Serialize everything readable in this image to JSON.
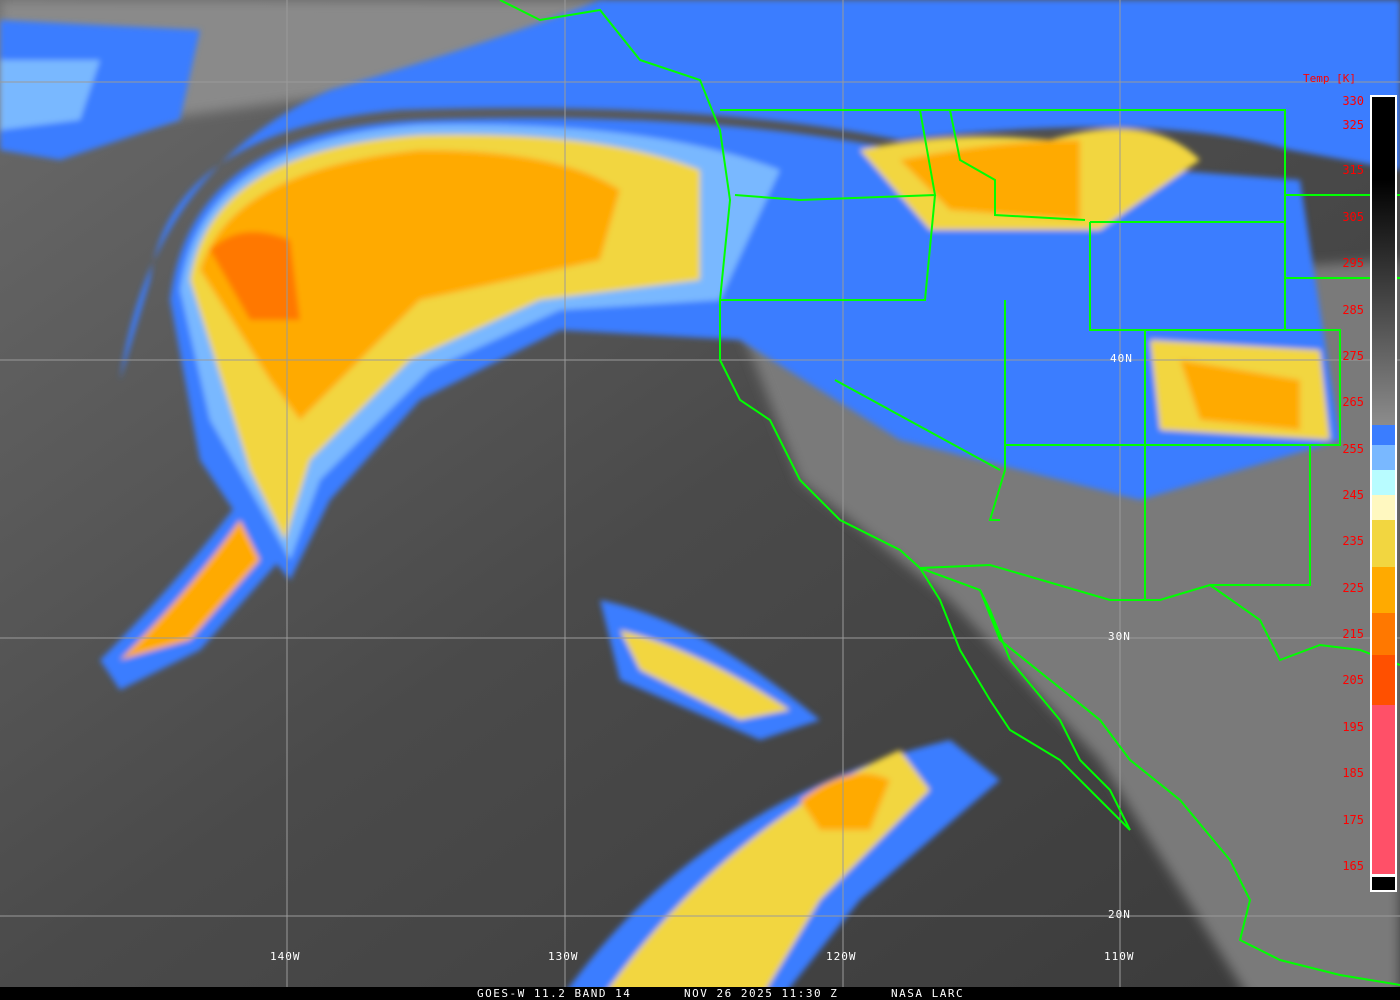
{
  "image": {
    "caption": {
      "satellite": "GOES-W 11.2 BAND 14",
      "datetime": "NOV 26 2025 11:30 Z",
      "credit": "NASA LARC"
    },
    "grid_labels": {
      "longitudes": [
        "140W",
        "130W",
        "120W",
        "110W"
      ],
      "latitudes": [
        "40N",
        "30N",
        "20N"
      ]
    },
    "legend": {
      "title": "Temp [K]",
      "ticks": [
        "330",
        "325",
        "315",
        "305",
        "295",
        "285",
        "275",
        "265",
        "255",
        "245",
        "235",
        "225",
        "215",
        "205",
        "195",
        "185",
        "175",
        "165"
      ],
      "color_segments": [
        {
          "from": 330,
          "to": 262,
          "color": "gradient #000000 to #8c8c8c"
        },
        {
          "from": 262,
          "to": 257,
          "color": "#3a7dff"
        },
        {
          "from": 257,
          "to": 251,
          "color": "#79b8ff"
        },
        {
          "from": 251,
          "to": 246,
          "color": "#b8fcff"
        },
        {
          "from": 246,
          "to": 240,
          "color": "#fff8c0"
        },
        {
          "from": 240,
          "to": 230,
          "color": "#f2d640"
        },
        {
          "from": 230,
          "to": 220,
          "color": "#ffaa00"
        },
        {
          "from": 220,
          "to": 211,
          "color": "#ff7800"
        },
        {
          "from": 211,
          "to": 200,
          "color": "#ff5000"
        },
        {
          "from": 200,
          "to": 163,
          "color": "#ff5068"
        }
      ]
    },
    "overlay_color": "#00ff00"
  }
}
